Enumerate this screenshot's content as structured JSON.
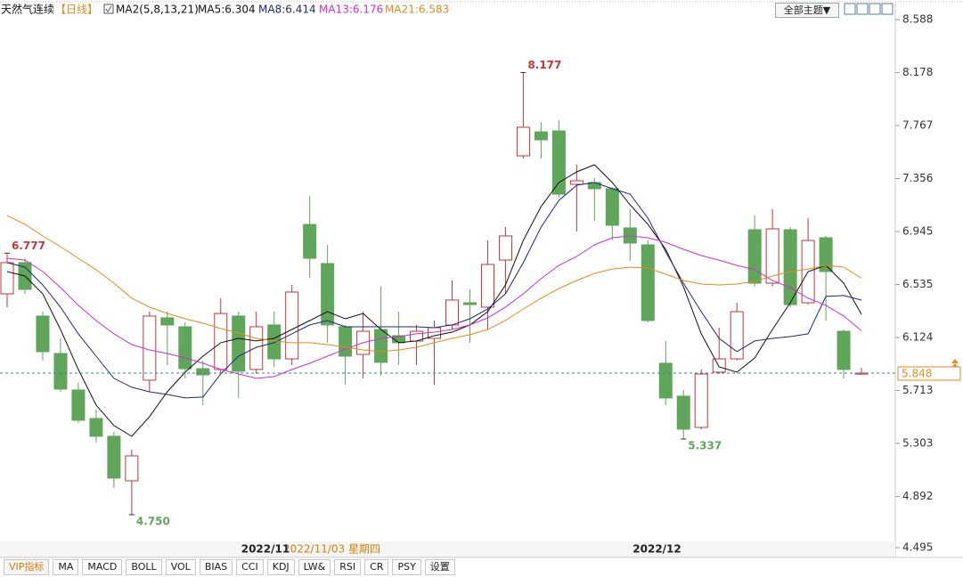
{
  "header": {
    "title": "天然气连续",
    "period": "【日线】",
    "ma_params": "MA2(5,8,13,21)",
    "theme_button": "全部主题▼"
  },
  "chart_data": {
    "type": "candlestick",
    "categories": [
      null,
      null,
      null,
      null,
      null,
      null,
      null,
      null,
      null,
      null,
      null,
      null,
      null,
      null,
      "2022/11",
      null,
      null,
      null,
      null,
      null,
      null,
      null,
      null,
      null,
      null,
      null,
      null,
      null,
      null,
      null,
      null,
      null,
      null,
      null,
      null,
      null,
      "2022/12",
      null,
      null,
      null,
      null,
      null,
      null,
      null,
      null,
      null,
      null,
      null,
      null
    ],
    "open": [
      6.462,
      6.704,
      6.29,
      6.0,
      5.717,
      5.496,
      5.358,
      5.013,
      5.793,
      6.276,
      6.207,
      5.882,
      5.876,
      6.29,
      5.876,
      6.221,
      5.958,
      7.0,
      6.697,
      6.207,
      5.993,
      6.186,
      6.138,
      6.096,
      6.117,
      6.221,
      6.393,
      6.359,
      6.724,
      7.532,
      7.718,
      7.725,
      7.311,
      7.325,
      7.277,
      6.973,
      6.842,
      5.924,
      5.669,
      5.427,
      5.855,
      5.958,
      6.959,
      6.545,
      6.959,
      6.393,
      6.897,
      6.172,
      5.84
    ],
    "high": [
      6.777,
      6.738,
      6.324,
      6.117,
      5.772,
      5.565,
      5.392,
      5.254,
      6.324,
      6.324,
      6.242,
      5.945,
      6.428,
      6.324,
      6.324,
      6.324,
      6.531,
      7.221,
      6.842,
      6.221,
      6.324,
      6.518,
      6.324,
      6.221,
      6.255,
      6.566,
      6.497,
      6.876,
      6.98,
      8.177,
      7.794,
      7.808,
      7.463,
      7.359,
      7.291,
      7.118,
      6.876,
      6.097,
      5.717,
      5.876,
      6.2,
      6.393,
      7.069,
      7.118,
      6.98,
      7.049,
      6.911,
      6.186,
      5.889
    ],
    "low": [
      6.359,
      6.462,
      5.945,
      5.703,
      5.461,
      5.31,
      4.958,
      4.75,
      5.703,
      5.91,
      5.807,
      5.6,
      5.841,
      5.655,
      5.841,
      5.896,
      5.91,
      6.586,
      6.083,
      5.758,
      5.807,
      5.827,
      5.91,
      5.91,
      5.758,
      6.186,
      6.083,
      6.186,
      6.462,
      7.511,
      7.511,
      7.208,
      6.945,
      7.028,
      6.876,
      6.718,
      6.241,
      5.6,
      5.337,
      5.413,
      5.841,
      5.945,
      6.518,
      6.518,
      6.359,
      6.38,
      6.255,
      5.807,
      5.834
    ],
    "close": [
      6.704,
      6.497,
      6.014,
      5.724,
      5.482,
      5.358,
      5.034,
      5.206,
      6.29,
      6.221,
      5.882,
      5.834,
      6.31,
      5.862,
      6.207,
      5.958,
      6.476,
      6.738,
      6.221,
      5.979,
      6.172,
      5.931,
      6.083,
      6.172,
      6.2,
      6.414,
      6.379,
      6.69,
      6.911,
      7.753,
      7.656,
      7.235,
      7.339,
      7.277,
      6.994,
      6.856,
      6.255,
      5.655,
      5.413,
      5.841,
      5.958,
      6.324,
      6.545,
      6.966,
      6.379,
      6.876,
      6.635,
      5.876,
      5.848
    ],
    "up_color": "#c0393b",
    "down_color": "#5fa55a",
    "series": [
      {
        "name": "MA5:6.304",
        "color": "#111111",
        "values": [
          6.635,
          6.6,
          6.462,
          6.186,
          5.876,
          5.6,
          5.441,
          5.358,
          5.51,
          5.703,
          5.855,
          5.979,
          6.083,
          6.117,
          6.097,
          6.117,
          6.186,
          6.255,
          6.324,
          6.269,
          6.31,
          6.186,
          6.083,
          6.097,
          6.138,
          6.165,
          6.221,
          6.324,
          6.531,
          6.876,
          7.139,
          7.325,
          7.408,
          7.463,
          7.325,
          7.152,
          7.001,
          6.807,
          6.518,
          6.152,
          5.896,
          5.855,
          5.965,
          6.186,
          6.393,
          6.635,
          6.683,
          6.545,
          6.304
        ]
      },
      {
        "name": "MA8:6.414",
        "color": "#1c2a7a",
        "values": [
          6.704,
          6.669,
          6.531,
          6.359,
          6.152,
          5.979,
          5.807,
          5.738,
          5.703,
          5.682,
          5.655,
          5.662,
          5.841,
          5.979,
          6.048,
          6.083,
          6.152,
          6.221,
          6.255,
          6.207,
          6.207,
          6.207,
          6.207,
          6.207,
          6.2,
          6.221,
          6.269,
          6.345,
          6.462,
          6.704,
          6.98,
          7.187,
          7.304,
          7.325,
          7.277,
          7.235,
          7.049,
          6.787,
          6.545,
          6.324,
          6.117,
          6.014,
          6.097,
          6.117,
          6.131,
          6.152,
          6.442,
          6.449,
          6.414
        ]
      },
      {
        "name": "MA13:6.176",
        "color": "#d12fd1",
        "values": [
          6.738,
          6.724,
          6.635,
          6.511,
          6.373,
          6.255,
          6.152,
          6.069,
          6.027,
          6.0,
          5.965,
          5.924,
          5.876,
          5.841,
          5.807,
          5.82,
          5.876,
          5.924,
          5.979,
          6.034,
          6.083,
          6.117,
          6.131,
          6.152,
          6.165,
          6.186,
          6.221,
          6.276,
          6.359,
          6.462,
          6.58,
          6.683,
          6.752,
          6.842,
          6.897,
          6.911,
          6.897,
          6.862,
          6.807,
          6.759,
          6.724,
          6.683,
          6.649,
          6.566,
          6.511,
          6.428,
          6.373,
          6.29,
          6.176
        ]
      },
      {
        "name": "MA21:6.583",
        "color": "#e58a1c",
        "values": [
          7.069,
          7.001,
          6.911,
          6.828,
          6.738,
          6.649,
          6.545,
          6.428,
          6.359,
          6.31,
          6.269,
          6.235,
          6.193,
          6.159,
          6.117,
          6.097,
          6.083,
          6.083,
          6.069,
          6.048,
          6.027,
          6.014,
          6.027,
          6.048,
          6.083,
          6.117,
          6.145,
          6.186,
          6.255,
          6.345,
          6.428,
          6.504,
          6.566,
          6.621,
          6.655,
          6.669,
          6.662,
          6.614,
          6.566,
          6.538,
          6.531,
          6.538,
          6.559,
          6.6,
          6.635,
          6.655,
          6.683,
          6.669,
          6.583
        ]
      }
    ],
    "ylim": [
      4.495,
      8.588
    ],
    "yticks": [
      8.588,
      8.178,
      7.767,
      7.356,
      6.945,
      6.535,
      6.124,
      5.713,
      5.303,
      4.892,
      4.495
    ],
    "grid": false,
    "extreme_labels": [
      {
        "value": 8.177,
        "label": "8.177"
      },
      {
        "value": 6.777,
        "label": "6.777"
      },
      {
        "value": 4.75,
        "label": "4.750"
      },
      {
        "value": 5.337,
        "label": "5.337"
      }
    ],
    "last_price": {
      "value": 5.848,
      "label": "5.848"
    },
    "crosshair_date": "2022/11/03 星期四"
  },
  "toolbar": {
    "tabs": [
      "VIP指标",
      "MA",
      "MACD",
      "BOLL",
      "VOL",
      "BIAS",
      "CCI",
      "KDJ",
      "LW&",
      "RSI",
      "CR",
      "PSY",
      "设置"
    ]
  }
}
